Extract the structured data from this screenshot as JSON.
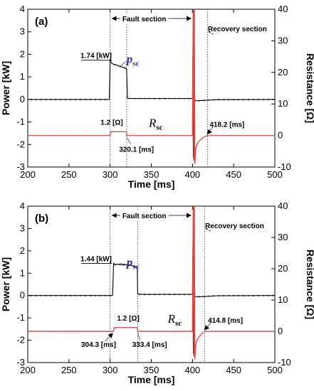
{
  "chart_data": [
    {
      "type": "line",
      "panel_label": "(a)",
      "xlabel": "Time [ms]",
      "ylabel": "Power [kW]",
      "y2label": "Resistance [Ω]",
      "xlim": [
        200,
        500
      ],
      "ylim": [
        -3,
        4
      ],
      "y2lim": [
        -10,
        40
      ],
      "xticks": [
        "200",
        "250",
        "300",
        "350",
        "400",
        "450",
        "500"
      ],
      "yticks": [
        "-3",
        "-2",
        "-1",
        "0",
        "1",
        "2",
        "3",
        "4"
      ],
      "y2ticks": [
        "-10",
        "0",
        "10",
        "20",
        "30",
        "40"
      ],
      "series": [
        {
          "name": "p_sc",
          "label_main": "p",
          "label_sub": "sc",
          "color": "#000000",
          "axis": "left",
          "x": [
            200,
            299,
            300,
            302,
            305,
            310,
            313,
            316,
            318,
            320,
            321,
            325,
            400,
            400.5,
            401,
            401.5,
            402,
            402.5,
            403,
            405,
            410,
            420,
            430,
            500
          ],
          "y": [
            0,
            0,
            1.74,
            1.6,
            1.55,
            1.5,
            1.45,
            1.42,
            1.4,
            1.35,
            0.05,
            0.04,
            0.04,
            2.0,
            -2.6,
            1.5,
            -2.0,
            0.5,
            -0.05,
            -0.06,
            -0.05,
            -0.03,
            -0.01,
            0
          ]
        },
        {
          "name": "R_sc",
          "label_main": "R",
          "label_sub": "sc",
          "color": "#e8463c",
          "axis": "right",
          "x": [
            200,
            300,
            301,
            320,
            320.1,
            400,
            401,
            401.6,
            402.2,
            402.8,
            404,
            406,
            409,
            413,
            418.2,
            425,
            500
          ],
          "y": [
            0,
            0,
            1.2,
            1.2,
            0,
            0,
            45,
            -8,
            45,
            -9,
            -4,
            -2.5,
            -1.5,
            -0.6,
            0,
            0,
            0
          ]
        }
      ],
      "vlines": [
        300,
        320.1,
        418.2
      ],
      "annotations": {
        "fault": "Fault section",
        "recovery": "Recovery section",
        "peak": "1.74 [kW]",
        "resistance": "1.2 [Ω]",
        "t1": "320.1 [ms]",
        "t2": "418.2 [ms]"
      }
    },
    {
      "type": "line",
      "panel_label": "(b)",
      "xlabel": "Time [ms]",
      "ylabel": "Power [kW]",
      "y2label": "Resistance [Ω]",
      "xlim": [
        200,
        500
      ],
      "ylim": [
        -3,
        4
      ],
      "y2lim": [
        -10,
        40
      ],
      "xticks": [
        "200",
        "250",
        "300",
        "350",
        "400",
        "450",
        "500"
      ],
      "yticks": [
        "-3",
        "-2",
        "-1",
        "0",
        "1",
        "2",
        "3",
        "4"
      ],
      "y2ticks": [
        "-10",
        "0",
        "10",
        "20",
        "30",
        "40"
      ],
      "series": [
        {
          "name": "p_sc",
          "label_main": "p",
          "label_sub": "sc",
          "color": "#000000",
          "axis": "left",
          "x": [
            200,
            303,
            304.3,
            306,
            310,
            315,
            320,
            325,
            330,
            333,
            333.4,
            340,
            400,
            400.5,
            401,
            401.5,
            402,
            402.5,
            403,
            405,
            410,
            420,
            430,
            500
          ],
          "y": [
            0,
            0,
            1.44,
            1.38,
            1.4,
            1.37,
            1.38,
            1.36,
            1.3,
            1.25,
            0.06,
            0.05,
            0.05,
            2.2,
            -2.6,
            1.6,
            -2.2,
            0.6,
            -0.05,
            -0.06,
            -0.05,
            -0.03,
            -0.01,
            0
          ]
        },
        {
          "name": "R_sc",
          "label_main": "R",
          "label_sub": "sc",
          "color": "#e8463c",
          "axis": "right",
          "x": [
            200,
            304.3,
            305,
            333,
            333.4,
            400,
            401,
            401.6,
            402.2,
            402.8,
            404,
            406,
            409,
            412,
            414.8,
            425,
            500
          ],
          "y": [
            0,
            0,
            1.2,
            1.2,
            0,
            0,
            45,
            -8,
            45,
            -9,
            -4,
            -2.5,
            -1.5,
            -0.6,
            0,
            0,
            0
          ]
        }
      ],
      "vlines": [
        300,
        333.4,
        414.8
      ],
      "annotations": {
        "fault": "Fault section",
        "recovery": "Recovery section",
        "peak": "1.44 [kW]",
        "resistance": "1.2 [Ω]",
        "t0": "304.3 [ms]",
        "t1": "333.4 [ms]",
        "t2": "414.8 [ms]"
      }
    }
  ]
}
